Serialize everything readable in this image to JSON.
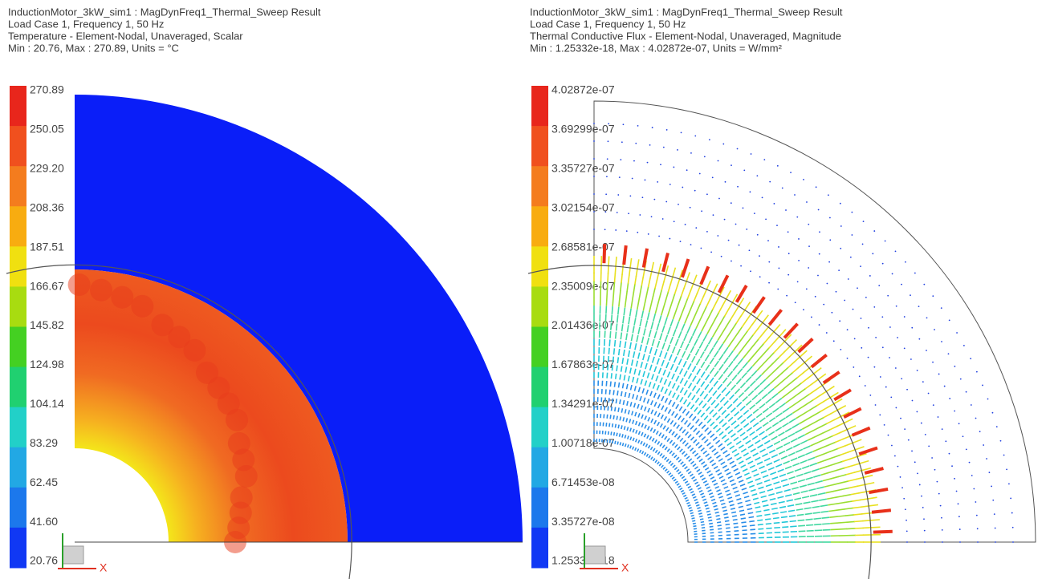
{
  "panels": [
    {
      "header": [
        "InductionMotor_3kW_sim1 : MagDynFreq1_Thermal_Sweep Result",
        "Load Case 1, Frequency 1, 50 Hz",
        "Temperature - Element-Nodal, Unaveraged, Scalar",
        "Min : 20.76, Max : 270.89, Units = °C"
      ],
      "legend": [
        "270.89",
        "250.05",
        "229.20",
        "208.36",
        "187.51",
        "166.67",
        "145.82",
        "124.98",
        "104.14",
        "83.29",
        "62.45",
        "41.60",
        "20.76"
      ],
      "axis_label": "X"
    },
    {
      "header": [
        "InductionMotor_3kW_sim1 : MagDynFreq1_Thermal_Sweep Result",
        "Load Case 1, Frequency 1, 50 Hz",
        "Thermal Conductive Flux - Element-Nodal, Unaveraged, Magnitude",
        "Min : 1.25332e-18, Max : 4.02872e-07, Units = W/mm²"
      ],
      "legend": [
        "4.02872e-07",
        "3.69299e-07",
        "3.35727e-07",
        "3.02154e-07",
        "2.68581e-07",
        "2.35009e-07",
        "2.01436e-07",
        "1.67863e-07",
        "1.34291e-07",
        "1.00718e-07",
        "6.71453e-08",
        "3.35727e-08",
        "1.25332e-18"
      ],
      "axis_label": "X"
    }
  ]
}
